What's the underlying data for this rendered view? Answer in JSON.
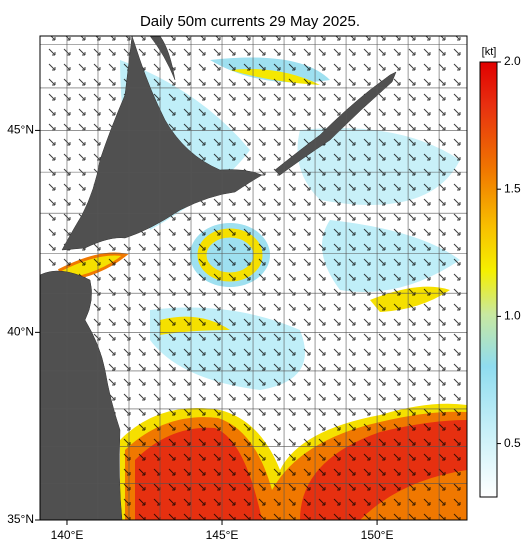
{
  "title": "Daily 50m currents 29 May 2025.",
  "map": {
    "lonlim": [
      139.13,
      152.9
    ],
    "latlim": [
      35,
      47.2
    ],
    "lon_ticks": [
      {
        "value": 140,
        "label": "140°E"
      },
      {
        "value": 145,
        "label": "145°E"
      },
      {
        "value": 150,
        "label": "150°E"
      }
    ],
    "lat_ticks": [
      {
        "value": 35,
        "label": "35°N"
      },
      {
        "value": 40,
        "label": "40°N"
      },
      {
        "value": 45,
        "label": "45°N"
      }
    ]
  },
  "colorbar": {
    "unit": "[kt]",
    "lim": [
      0.29,
      2.0
    ],
    "ticks": [
      {
        "value": 0.5,
        "label": "0.5"
      },
      {
        "value": 1,
        "label": "1.0"
      },
      {
        "value": 1.5,
        "label": "1.5"
      },
      {
        "value": 2,
        "label": "2.0"
      }
    ]
  }
}
